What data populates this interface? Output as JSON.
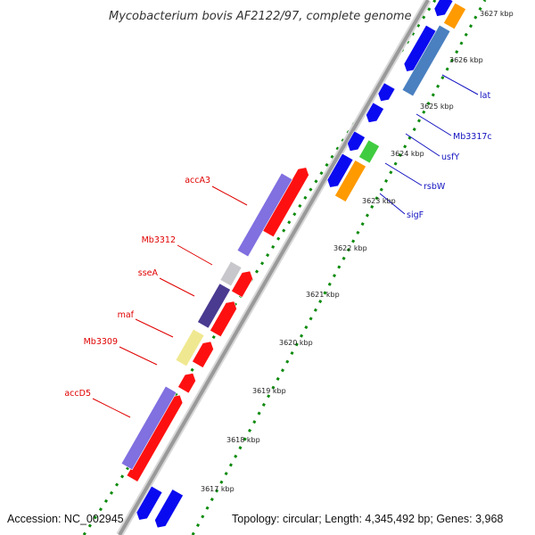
{
  "title": "Mycobacterium bovis AF2122/97, complete genome",
  "footer": {
    "accession": "Accession: NC_002945",
    "topology": "Topology: circular; Length: 4,345,492 bp; Genes: 3,968"
  },
  "scale": {
    "ticks": [
      "3617 kbp",
      "3618 kbp",
      "3619 kbp",
      "3620 kbp",
      "3621 kbp",
      "3622 kbp",
      "3623 kbp",
      "3624 kbp",
      "3625 kbp",
      "3626 kbp",
      "3627 kbp"
    ]
  },
  "strand_minus_labels": [
    "accA3",
    "Mb3312",
    "sseA",
    "maf",
    "Mb3309",
    "accD5"
  ],
  "strand_plus_labels": [
    "lat",
    "Mb3317c",
    "usfY",
    "rsbW",
    "sigF"
  ],
  "colors": {
    "backbone": "#9a9a9a",
    "tick_dots": "#0a8a0a",
    "gene_red": "#ff1010",
    "gene_blue": "#0a0af0",
    "accA3": "#8070e0",
    "Mb3312": "#c8c8cc",
    "sseA": "#4a3a90",
    "Mb3309": "#f0e890",
    "accD5": "#8070e0",
    "lat": "#4a80c0",
    "usfY_orange": "#ff9a00",
    "rsbW_green": "#40cc40",
    "sigF_orange": "#ff9a00",
    "label_left": "#e00000",
    "label_right": "#1010c0"
  }
}
